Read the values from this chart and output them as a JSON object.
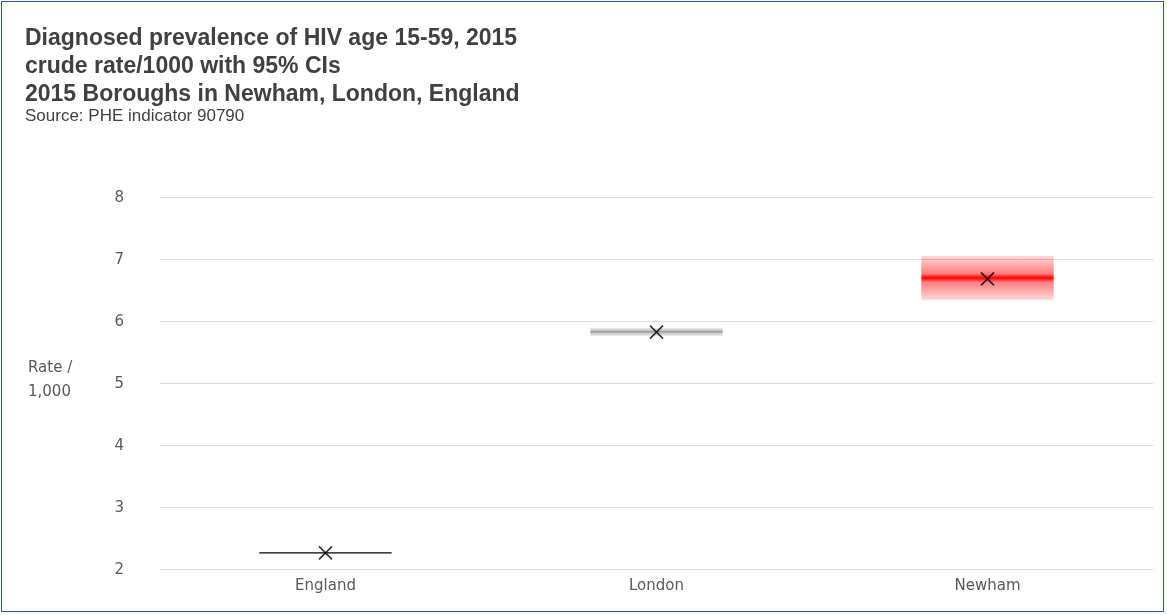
{
  "chart_data": {
    "type": "scatter",
    "title": "Diagnosed prevalence of HIV age 15-59, 2015\ncrude rate/1000 with 95% CIs\n2015 Boroughs in Newham, London, England",
    "annotations": [
      "Source: PHE indicator 90790"
    ],
    "ylabel": "Rate / 1,000",
    "categories": [
      "England",
      "London",
      "Newham"
    ],
    "series": [
      {
        "type": "bar",
        "colors": [
          "#000000",
          "#808080",
          "#ff0000"
        ],
        "base": [
          2.25,
          5.76,
          6.34
        ],
        "values": [
          0.02,
          0.13,
          0.71
        ]
      },
      {
        "color": "#000000",
        "values": [
          2.26,
          5.82,
          6.68
        ]
      }
    ],
    "ylim": [
      2,
      8
    ],
    "yticks": [
      2,
      3,
      4,
      5,
      6,
      7,
      8
    ],
    "grid": "y",
    "marker": "cross"
  }
}
